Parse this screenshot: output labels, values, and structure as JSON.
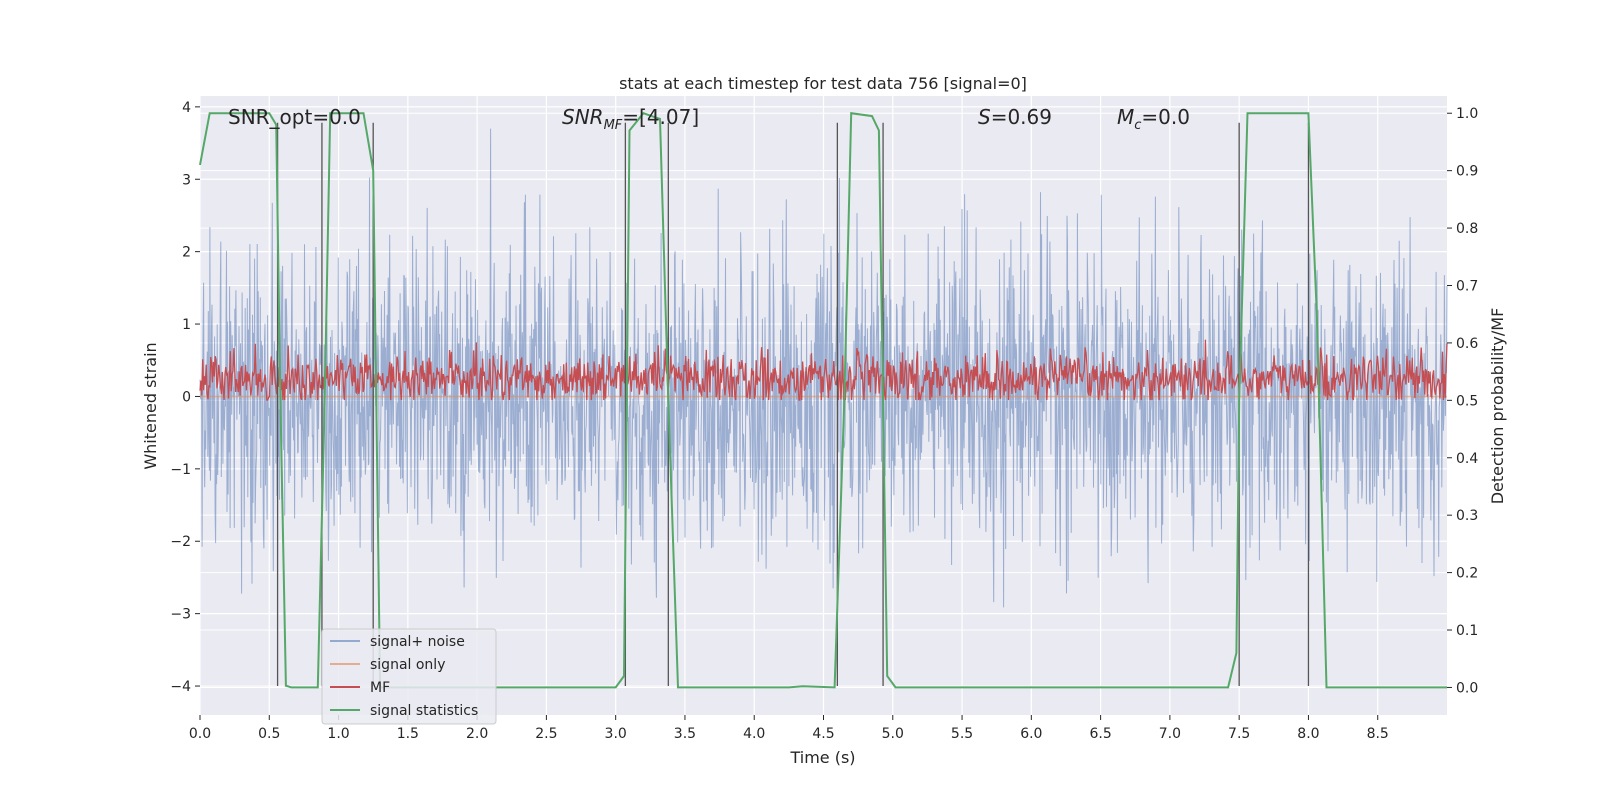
{
  "chart_data": {
    "type": "line",
    "title": "stats at each timestep for test data 756 [signal=0]",
    "xlabel": "Time (s)",
    "ylabel_left": "Whitened strain",
    "ylabel_right": "Detection probability/MF",
    "xlim": [
      0.0,
      9.0
    ],
    "ylim_left": [
      -4.4,
      4.15
    ],
    "ylim_right": [
      -0.048,
      1.03
    ],
    "x_ticks": [
      "0.0",
      "0.5",
      "1.0",
      "1.5",
      "2.0",
      "2.5",
      "3.0",
      "3.5",
      "4.0",
      "4.5",
      "5.0",
      "5.5",
      "6.0",
      "6.5",
      "7.0",
      "7.5",
      "8.0",
      "8.5"
    ],
    "y_ticks_left": [
      "4",
      "3",
      "2",
      "1",
      "0",
      "−1",
      "−2",
      "−3",
      "−4"
    ],
    "y_ticks_right": [
      "1.0",
      "0.9",
      "0.8",
      "0.7",
      "0.6",
      "0.5",
      "0.4",
      "0.3",
      "0.2",
      "0.1",
      "0.0"
    ],
    "grid": true,
    "legend_position": "bottom-left",
    "annotations": [
      "SNR_opt=0.0",
      "SNR_MF=[4.07]",
      "S=0.69",
      "M_c=0.0"
    ],
    "series": [
      {
        "name": "signal+ noise",
        "axis": "left",
        "color": "#4c72b0",
        "description_values": "white noise, amplitude approx ±2.5, extremes approx ±3.7"
      },
      {
        "name": "signal only",
        "axis": "left",
        "color": "#dd8452",
        "values_x": [
          0.0,
          9.0
        ],
        "values_y": [
          0.0,
          0.0
        ]
      },
      {
        "name": "MF",
        "axis": "left",
        "color": "#c44e52",
        "baseline": 0.25,
        "amplitude": 0.35
      },
      {
        "name": "signal statistics",
        "axis": "right",
        "color": "#55a868",
        "x": [
          0.0,
          0.07,
          0.5,
          0.55,
          0.58,
          0.62,
          0.66,
          0.85,
          0.9,
          0.94,
          1.18,
          1.25,
          1.3,
          3.0,
          3.06,
          3.1,
          3.2,
          3.32,
          3.38,
          3.45,
          4.25,
          4.35,
          4.58,
          4.65,
          4.7,
          4.85,
          4.9,
          4.96,
          5.02,
          7.42,
          7.48,
          7.5,
          7.56,
          8.0,
          8.06,
          8.13,
          9.0
        ],
        "y": [
          0.91,
          1.0,
          1.0,
          0.98,
          0.5,
          0.003,
          0.0,
          0.0,
          0.5,
          1.0,
          1.0,
          0.9,
          0.0,
          0.0,
          0.02,
          0.97,
          1.0,
          0.99,
          0.5,
          0.0,
          0.0,
          0.002,
          0.0,
          0.5,
          1.0,
          0.995,
          0.97,
          0.02,
          0.0,
          0.0,
          0.06,
          0.5,
          1.0,
          1.0,
          0.65,
          0.0,
          0.0
        ]
      }
    ],
    "vlines_x": [
      0.56,
      0.88,
      1.25,
      3.07,
      3.38,
      4.6,
      4.93,
      7.5,
      8.0
    ],
    "vline_ymin": -4.0,
    "vline_ymax": 3.78
  },
  "legend": {
    "items": [
      {
        "label": "signal+ noise",
        "color": "#4c72b0"
      },
      {
        "label": "signal only",
        "color": "#dd8452"
      },
      {
        "label": "MF",
        "color": "#c44e52"
      },
      {
        "label": "signal statistics",
        "color": "#55a868"
      }
    ]
  }
}
